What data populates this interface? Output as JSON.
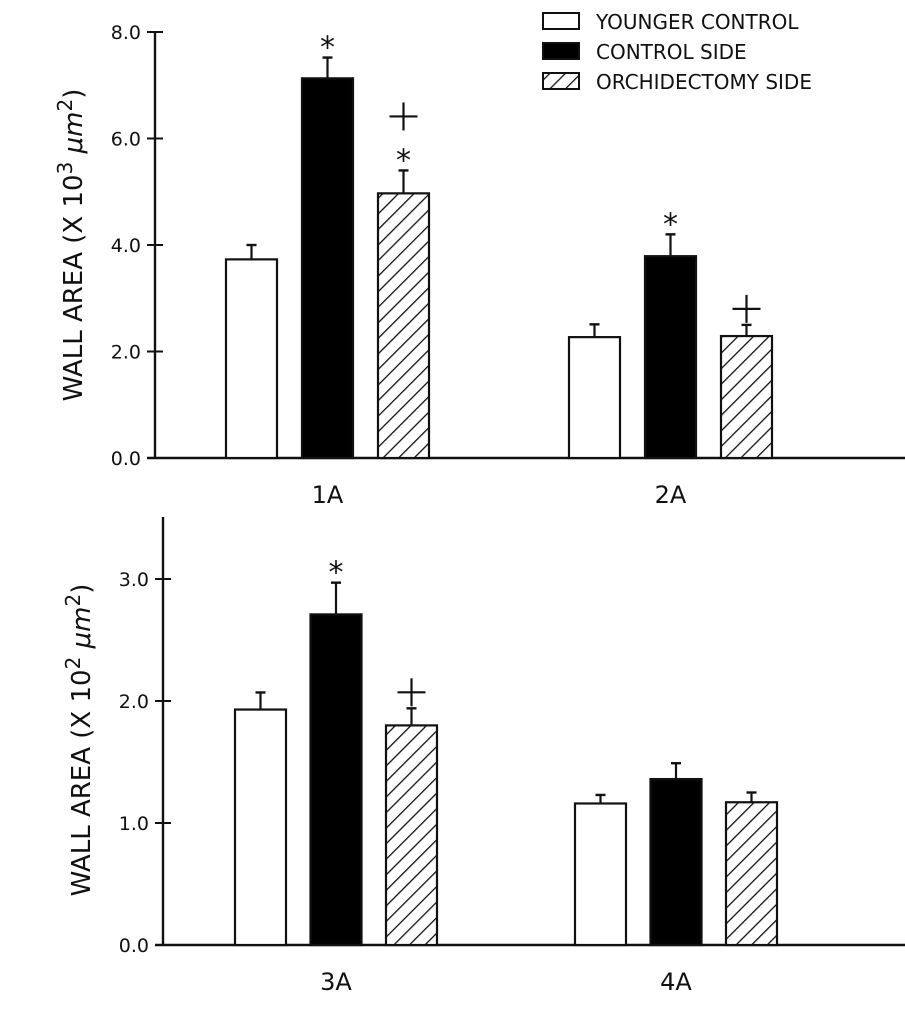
{
  "chart_data": [
    {
      "type": "bar",
      "ylabel_prefix": "WALL AREA (X 10",
      "ylabel_exp": "3",
      "ylabel_unit": "μm",
      "ylabel_unit_exp": "2",
      "ylabel_suffix": ")",
      "ylim": [
        0,
        8.0
      ],
      "yticks": [
        "0.0",
        "2.0",
        "4.0",
        "6.0",
        "8.0"
      ],
      "ytick_values": [
        0,
        2,
        4,
        6,
        8
      ],
      "categories": [
        "1A",
        "2A"
      ],
      "series": [
        {
          "name": "YOUNGER CONTROL",
          "values": [
            3.73,
            2.27
          ],
          "errors": [
            0.27,
            0.24
          ],
          "annotations": [
            "",
            ""
          ]
        },
        {
          "name": "CONTROL SIDE",
          "values": [
            7.13,
            3.79
          ],
          "errors": [
            0.39,
            0.41
          ],
          "annotations": [
            "*",
            "*"
          ]
        },
        {
          "name": "ORCHIDECTOMY SIDE",
          "values": [
            4.97,
            2.29
          ],
          "errors": [
            0.43,
            0.21
          ],
          "annotations": [
            "+*",
            "+"
          ]
        }
      ],
      "legend": {
        "position": "top-right",
        "entries": [
          "YOUNGER CONTROL",
          "CONTROL SIDE",
          "ORCHIDECTOMY SIDE"
        ]
      }
    },
    {
      "type": "bar",
      "ylabel_prefix": "WALL AREA (X 10",
      "ylabel_exp": "2",
      "ylabel_unit": "μm",
      "ylabel_unit_exp": "2",
      "ylabel_suffix": ")",
      "ylim": [
        0,
        3.5
      ],
      "yticks": [
        "0.0",
        "1.0",
        "2.0",
        "3.0"
      ],
      "ytick_values": [
        0,
        1,
        2,
        3
      ],
      "categories": [
        "3A",
        "4A"
      ],
      "series": [
        {
          "name": "YOUNGER CONTROL",
          "values": [
            1.93,
            1.16
          ],
          "errors": [
            0.14,
            0.07
          ],
          "annotations": [
            "",
            ""
          ]
        },
        {
          "name": "CONTROL SIDE",
          "values": [
            2.71,
            1.36
          ],
          "errors": [
            0.26,
            0.13
          ],
          "annotations": [
            "*",
            ""
          ]
        },
        {
          "name": "ORCHIDECTOMY SIDE",
          "values": [
            1.8,
            1.17
          ],
          "errors": [
            0.14,
            0.08
          ],
          "annotations": [
            "+",
            ""
          ]
        }
      ]
    }
  ]
}
